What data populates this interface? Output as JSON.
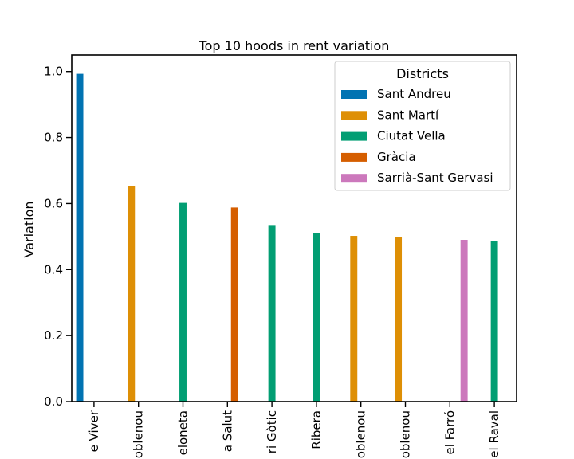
{
  "chart_data": {
    "type": "bar",
    "title": "Top 10 hoods in rent variation",
    "xlabel": "",
    "ylabel": "Variation",
    "ylim": [
      0,
      1.05
    ],
    "yticks": [
      "0.0",
      "0.2",
      "0.4",
      "0.6",
      "0.8",
      "1.0"
    ],
    "yticks_values": [
      0,
      0.2,
      0.4,
      0.6,
      0.8,
      1.0
    ],
    "categories": [
      "e Viver",
      "oblenou",
      "eloneta",
      "a Salut",
      "ri Gòtic",
      "Ribera",
      "oblenou",
      "oblenou",
      "el Farró",
      "el Raval"
    ],
    "hue_order": [
      "Sant Andreu",
      "Sant Martí",
      "Ciutat Vella",
      "Gràcia",
      "Sarrià-Sant Gervasi"
    ],
    "bars": [
      {
        "district": "Sant Andreu",
        "value": 0.993
      },
      {
        "district": "Sant Martí",
        "value": 0.652
      },
      {
        "district": "Ciutat Vella",
        "value": 0.602
      },
      {
        "district": "Gràcia",
        "value": 0.588
      },
      {
        "district": "Ciutat Vella",
        "value": 0.535
      },
      {
        "district": "Ciutat Vella",
        "value": 0.51
      },
      {
        "district": "Sant Martí",
        "value": 0.502
      },
      {
        "district": "Sant Martí",
        "value": 0.498
      },
      {
        "district": "Sarrià-Sant Gervasi",
        "value": 0.49
      },
      {
        "district": "Ciutat Vella",
        "value": 0.487
      }
    ],
    "legend": {
      "title": "Districts",
      "position": "top-right",
      "entries": [
        {
          "name": "Sant Andreu",
          "color": "#0173b2"
        },
        {
          "name": "Sant Martí",
          "color": "#de8f05"
        },
        {
          "name": "Ciutat Vella",
          "color": "#029e73"
        },
        {
          "name": "Gràcia",
          "color": "#d55e00"
        },
        {
          "name": "Sarrià-Sant Gervasi",
          "color": "#cc78bc"
        }
      ]
    },
    "grid": false
  }
}
